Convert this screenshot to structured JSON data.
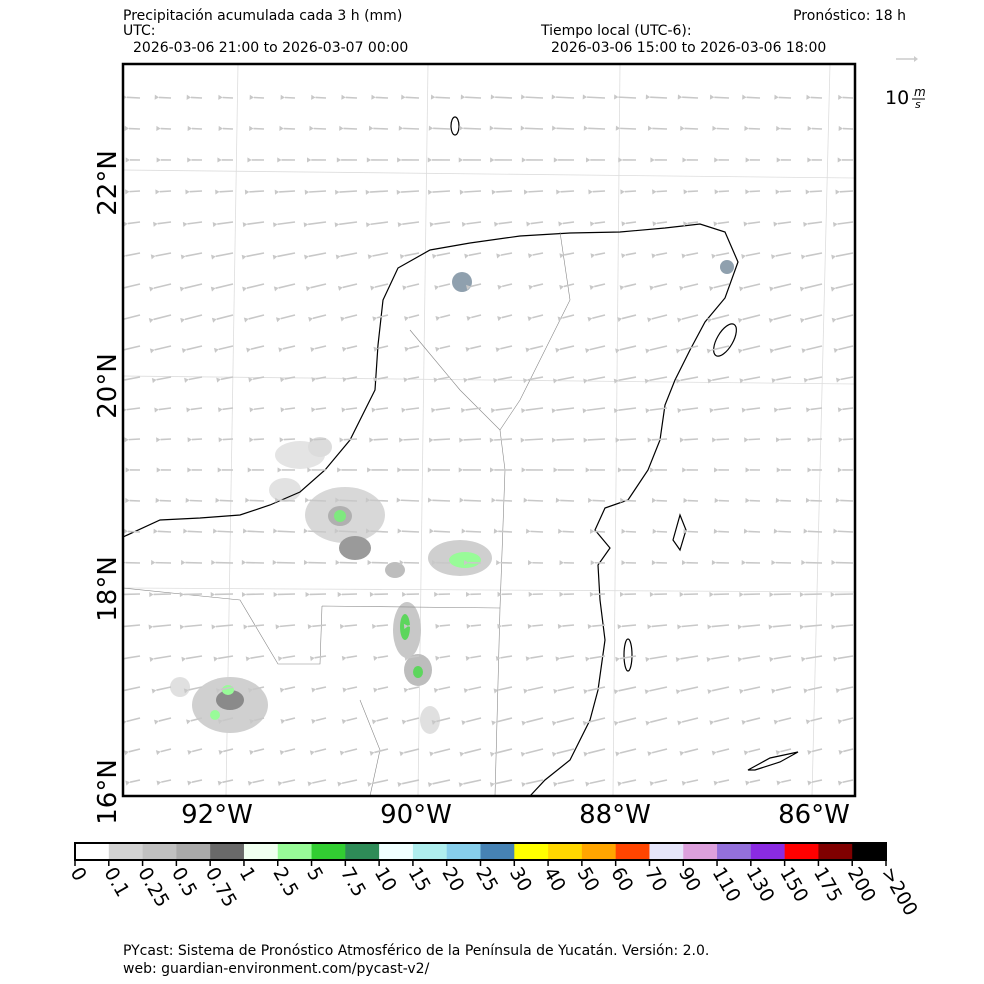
{
  "header": {
    "title": "Precipitación acumulada cada 3 h (mm)",
    "forecast": "Pronóstico: 18 h",
    "utc_label": "UTC:",
    "utc_range": "2026-03-06 21:00 to 2026-03-07 00:00",
    "local_label": "Tiempo local (UTC-6):",
    "local_range": "2026-03-06 15:00 to 2026-03-06 18:00"
  },
  "wind_key": {
    "speed": "10",
    "unit_top": "m",
    "unit_bottom": "s"
  },
  "map": {
    "lat_labels": [
      "22°N",
      "20°N",
      "18°N",
      "16°N"
    ],
    "lon_labels": [
      "92°W",
      "90°W",
      "88°W",
      "86°W"
    ]
  },
  "colorbar": {
    "colors": [
      "#ffffff",
      "#d3d3d3",
      "#c0c0c0",
      "#a9a9a9",
      "#696969",
      "#f0fff0",
      "#98fb98",
      "#32cd32",
      "#2e8b57",
      "#f0ffff",
      "#afeeee",
      "#87ceeb",
      "#4682b4",
      "#ffff00",
      "#ffd700",
      "#ffa500",
      "#ff4500",
      "#e6e6fa",
      "#dda0dd",
      "#9370db",
      "#8a2be2",
      "#ff0000",
      "#800000",
      "#000000"
    ],
    "labels": [
      "0",
      "0.1",
      "0.25",
      "0.5",
      "0.75",
      "1",
      "2.5",
      "5",
      "7.5",
      "10",
      "15",
      "20",
      "25",
      "30",
      "40",
      "50",
      "60",
      "70",
      "90",
      "110",
      "130",
      "150",
      "175",
      "200",
      ">200"
    ]
  },
  "footer": {
    "line1": "PYcast: Sistema de Pronóstico Atmosférico de la Península de Yucatán. Versión: 2.0.",
    "line2": "web: guardian-environment.com/pycast-v2/"
  }
}
